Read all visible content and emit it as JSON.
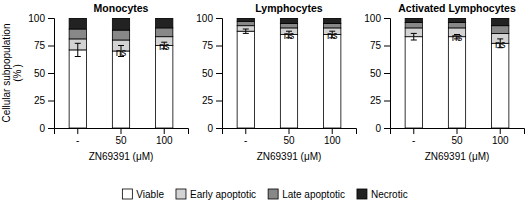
{
  "chart_data": [
    {
      "type": "bar",
      "title": "Monocytes",
      "categories": [
        "-",
        "50",
        "100"
      ],
      "xlabel": "ZN69391 (μM)",
      "ylabel": "Cellular subpopulation\n(% )",
      "series": [
        {
          "name": "Viable",
          "color": "#FFFFFF",
          "values": [
            71,
            70,
            75
          ],
          "errors": [
            6,
            5,
            3
          ]
        },
        {
          "name": "Early apoptotic",
          "color": "#D3D3D3",
          "values": [
            10,
            10,
            8
          ]
        },
        {
          "name": "Late apoptotic",
          "color": "#888888",
          "values": [
            9,
            9,
            8
          ]
        },
        {
          "name": "Necrotic",
          "color": "#222222",
          "values": [
            10,
            11,
            9
          ]
        }
      ],
      "stacked": true,
      "ylim": [
        0,
        100
      ],
      "yticks": [
        0,
        25,
        50,
        75,
        100
      ],
      "annotations": [
        {
          "text": "ns",
          "x": "50",
          "y": 65
        },
        {
          "text": "ns",
          "x": "100",
          "y": 70
        }
      ],
      "grid": false,
      "legend": "bottom"
    },
    {
      "type": "bar",
      "title": "Lymphocytes",
      "categories": [
        "-",
        "50",
        "100"
      ],
      "xlabel": "ZN69391 (μM)",
      "series": [
        {
          "name": "Viable",
          "color": "#FFFFFF",
          "values": [
            88,
            85,
            85
          ],
          "errors": [
            2,
            3,
            3
          ]
        },
        {
          "name": "Early apoptotic",
          "color": "#D3D3D3",
          "values": [
            5,
            6,
            6
          ]
        },
        {
          "name": "Late apoptotic",
          "color": "#888888",
          "values": [
            4,
            4,
            4
          ]
        },
        {
          "name": "Necrotic",
          "color": "#222222",
          "values": [
            3,
            5,
            5
          ]
        }
      ],
      "stacked": true,
      "ylim": [
        0,
        100
      ],
      "yticks": [
        0,
        25,
        50,
        75,
        100
      ],
      "annotations": [
        {
          "text": "ns",
          "x": "50",
          "y": 80
        },
        {
          "text": "ns",
          "x": "100",
          "y": 80
        }
      ],
      "grid": false
    },
    {
      "type": "bar",
      "title": "Activated Lymphocytes",
      "categories": [
        "-",
        "50",
        "100"
      ],
      "xlabel": "ZN69391 (μM)",
      "series": [
        {
          "name": "Viable",
          "color": "#FFFFFF",
          "values": [
            83,
            83,
            77
          ],
          "errors": [
            3,
            2,
            4
          ]
        },
        {
          "name": "Early apoptotic",
          "color": "#D3D3D3",
          "values": [
            8,
            8,
            9
          ]
        },
        {
          "name": "Late apoptotic",
          "color": "#888888",
          "values": [
            5,
            5,
            7
          ]
        },
        {
          "name": "Necrotic",
          "color": "#222222",
          "values": [
            4,
            4,
            7
          ]
        }
      ],
      "stacked": true,
      "ylim": [
        0,
        100
      ],
      "yticks": [
        0,
        25,
        50,
        75,
        100
      ],
      "annotations": [
        {
          "text": "ns",
          "x": "50",
          "y": 78
        },
        {
          "text": "ns",
          "x": "100",
          "y": 72
        }
      ],
      "grid": false
    }
  ]
}
